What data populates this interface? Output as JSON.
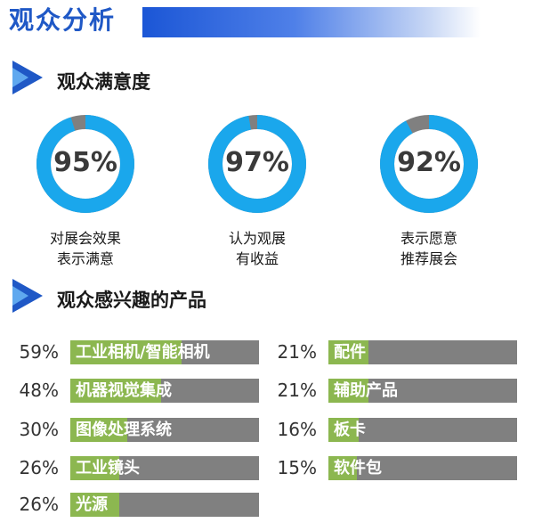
{
  "page_title": "观众分析",
  "sections": {
    "satisfaction": "观众满意度",
    "interest": "观众感兴趣的产品"
  },
  "colors": {
    "donut_fill": "#1aa7ec",
    "donut_rest": "#808080",
    "bar_fill": "#8cb750",
    "bar_track": "#808080",
    "title_blue": "#1f58c6"
  },
  "donuts": [
    {
      "value_text": "95%",
      "line1": "对展会效果",
      "line2": "表示满意"
    },
    {
      "value_text": "97%",
      "line1": "认为观展",
      "line2": "有收益"
    },
    {
      "value_text": "92%",
      "line1": "表示愿意",
      "line2": "推荐展会"
    }
  ],
  "bars_left": [
    {
      "pct_text": "59%",
      "label": "工业相机/智能相机"
    },
    {
      "pct_text": "48%",
      "label": "机器视觉集成"
    },
    {
      "pct_text": "30%",
      "label": "图像处理系统"
    },
    {
      "pct_text": "26%",
      "label": "工业镜头"
    },
    {
      "pct_text": "26%",
      "label": "光源"
    }
  ],
  "bars_right": [
    {
      "pct_text": "21%",
      "label": "配件"
    },
    {
      "pct_text": "21%",
      "label": "辅助产品"
    },
    {
      "pct_text": "16%",
      "label": "板卡"
    },
    {
      "pct_text": "15%",
      "label": "软件包"
    }
  ],
  "chart_data": [
    {
      "type": "pie",
      "categories": [
        "对展会效果表示满意",
        "认为观展有收益",
        "表示愿意推荐展会"
      ],
      "values": [
        95,
        97,
        92
      ],
      "title": "观众满意度"
    },
    {
      "type": "bar",
      "categories": [
        "工业相机/智能相机",
        "机器视觉集成",
        "图像处理系统",
        "工业镜头",
        "光源",
        "配件",
        "辅助产品",
        "板卡",
        "软件包"
      ],
      "values": [
        59,
        48,
        30,
        26,
        26,
        21,
        21,
        16,
        15
      ],
      "title": "观众感兴趣的产品",
      "ylim": [
        0,
        100
      ]
    }
  ]
}
